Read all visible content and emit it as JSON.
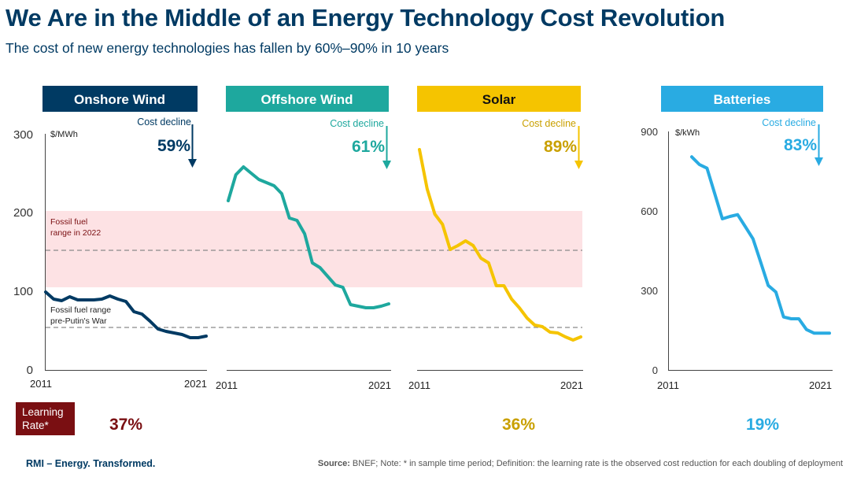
{
  "title": "We Are in the Middle of an Energy Technology Cost Revolution",
  "subtitle": "The cost of new energy technologies has fallen by 60%–90% in 10 years",
  "footer": {
    "brand": "RMI – Energy. Transformed.",
    "source_label": "Source:",
    "source_text": " BNEF; Note: * in sample time period; Definition: the learning rate is the observed cost reduction for each doubling of deployment"
  },
  "learning_rate": {
    "label_line1": "Learning",
    "label_line2": "Rate*",
    "onshore": "37%",
    "solar": "36%",
    "batteries": "19%"
  },
  "colors": {
    "onshore": "#003a63",
    "offshore": "#1ea89e",
    "solar": "#f5c400",
    "solar_text": "#c9a000",
    "batteries": "#29abe2",
    "fossil_band": "#fde2e4",
    "fossil_text": "#7a0f12",
    "learning_rate": "#7a0f12"
  },
  "chart_data": [
    {
      "type": "line",
      "panel_title": "Onshore Wind",
      "unit_label": "$/MWh",
      "ylim": [
        0,
        300
      ],
      "yticks": [
        0,
        100,
        200,
        300
      ],
      "x_start_label": "2011",
      "x_end_label": "2021",
      "decline_label": "Cost decline",
      "decline_value": "59%",
      "values": [
        99,
        90,
        88,
        93,
        89,
        89,
        89,
        90,
        94,
        90,
        87,
        74,
        71,
        62,
        52,
        49,
        47,
        45,
        41,
        41,
        43
      ],
      "fossil_range_2022": {
        "min": 105,
        "max": 202,
        "mid": 152,
        "label_line1": "Fossil fuel",
        "label_line2": "range in 2022"
      },
      "fossil_range_pre_war": {
        "mid": 54,
        "label_line1": "Fossil fuel range",
        "label_line2": "pre-Putin's War"
      }
    },
    {
      "type": "line",
      "panel_title": "Offshore Wind",
      "ylim": [
        0,
        300
      ],
      "x_start_label": "2011",
      "x_end_label": "2021",
      "decline_label": "Cost decline",
      "decline_value": "61%",
      "values": [
        215,
        248,
        258,
        250,
        242,
        238,
        234,
        224,
        193,
        190,
        173,
        136,
        130,
        119,
        108,
        105,
        83,
        81,
        79,
        79,
        81,
        84
      ]
    },
    {
      "type": "line",
      "panel_title": "Solar",
      "ylim": [
        0,
        300
      ],
      "x_start_label": "2011",
      "x_end_label": "2021",
      "decline_label": "Cost decline",
      "decline_value": "89%",
      "values": [
        280,
        230,
        198,
        185,
        153,
        158,
        164,
        158,
        142,
        136,
        107,
        107,
        90,
        79,
        66,
        57,
        55,
        48,
        47,
        42,
        38,
        42
      ]
    },
    {
      "type": "line",
      "panel_title": "Batteries",
      "unit_label": "$/kWh",
      "ylim": [
        0,
        900
      ],
      "yticks": [
        0,
        300,
        600,
        900
      ],
      "x_start_label": "2011",
      "x_end_label": "2021",
      "decline_label": "Cost decline",
      "decline_value": "83%",
      "values": [
        812,
        783,
        769,
        672,
        576,
        585,
        592,
        546,
        500,
        412,
        322,
        297,
        202,
        195,
        195,
        154,
        140,
        140,
        140
      ]
    }
  ]
}
